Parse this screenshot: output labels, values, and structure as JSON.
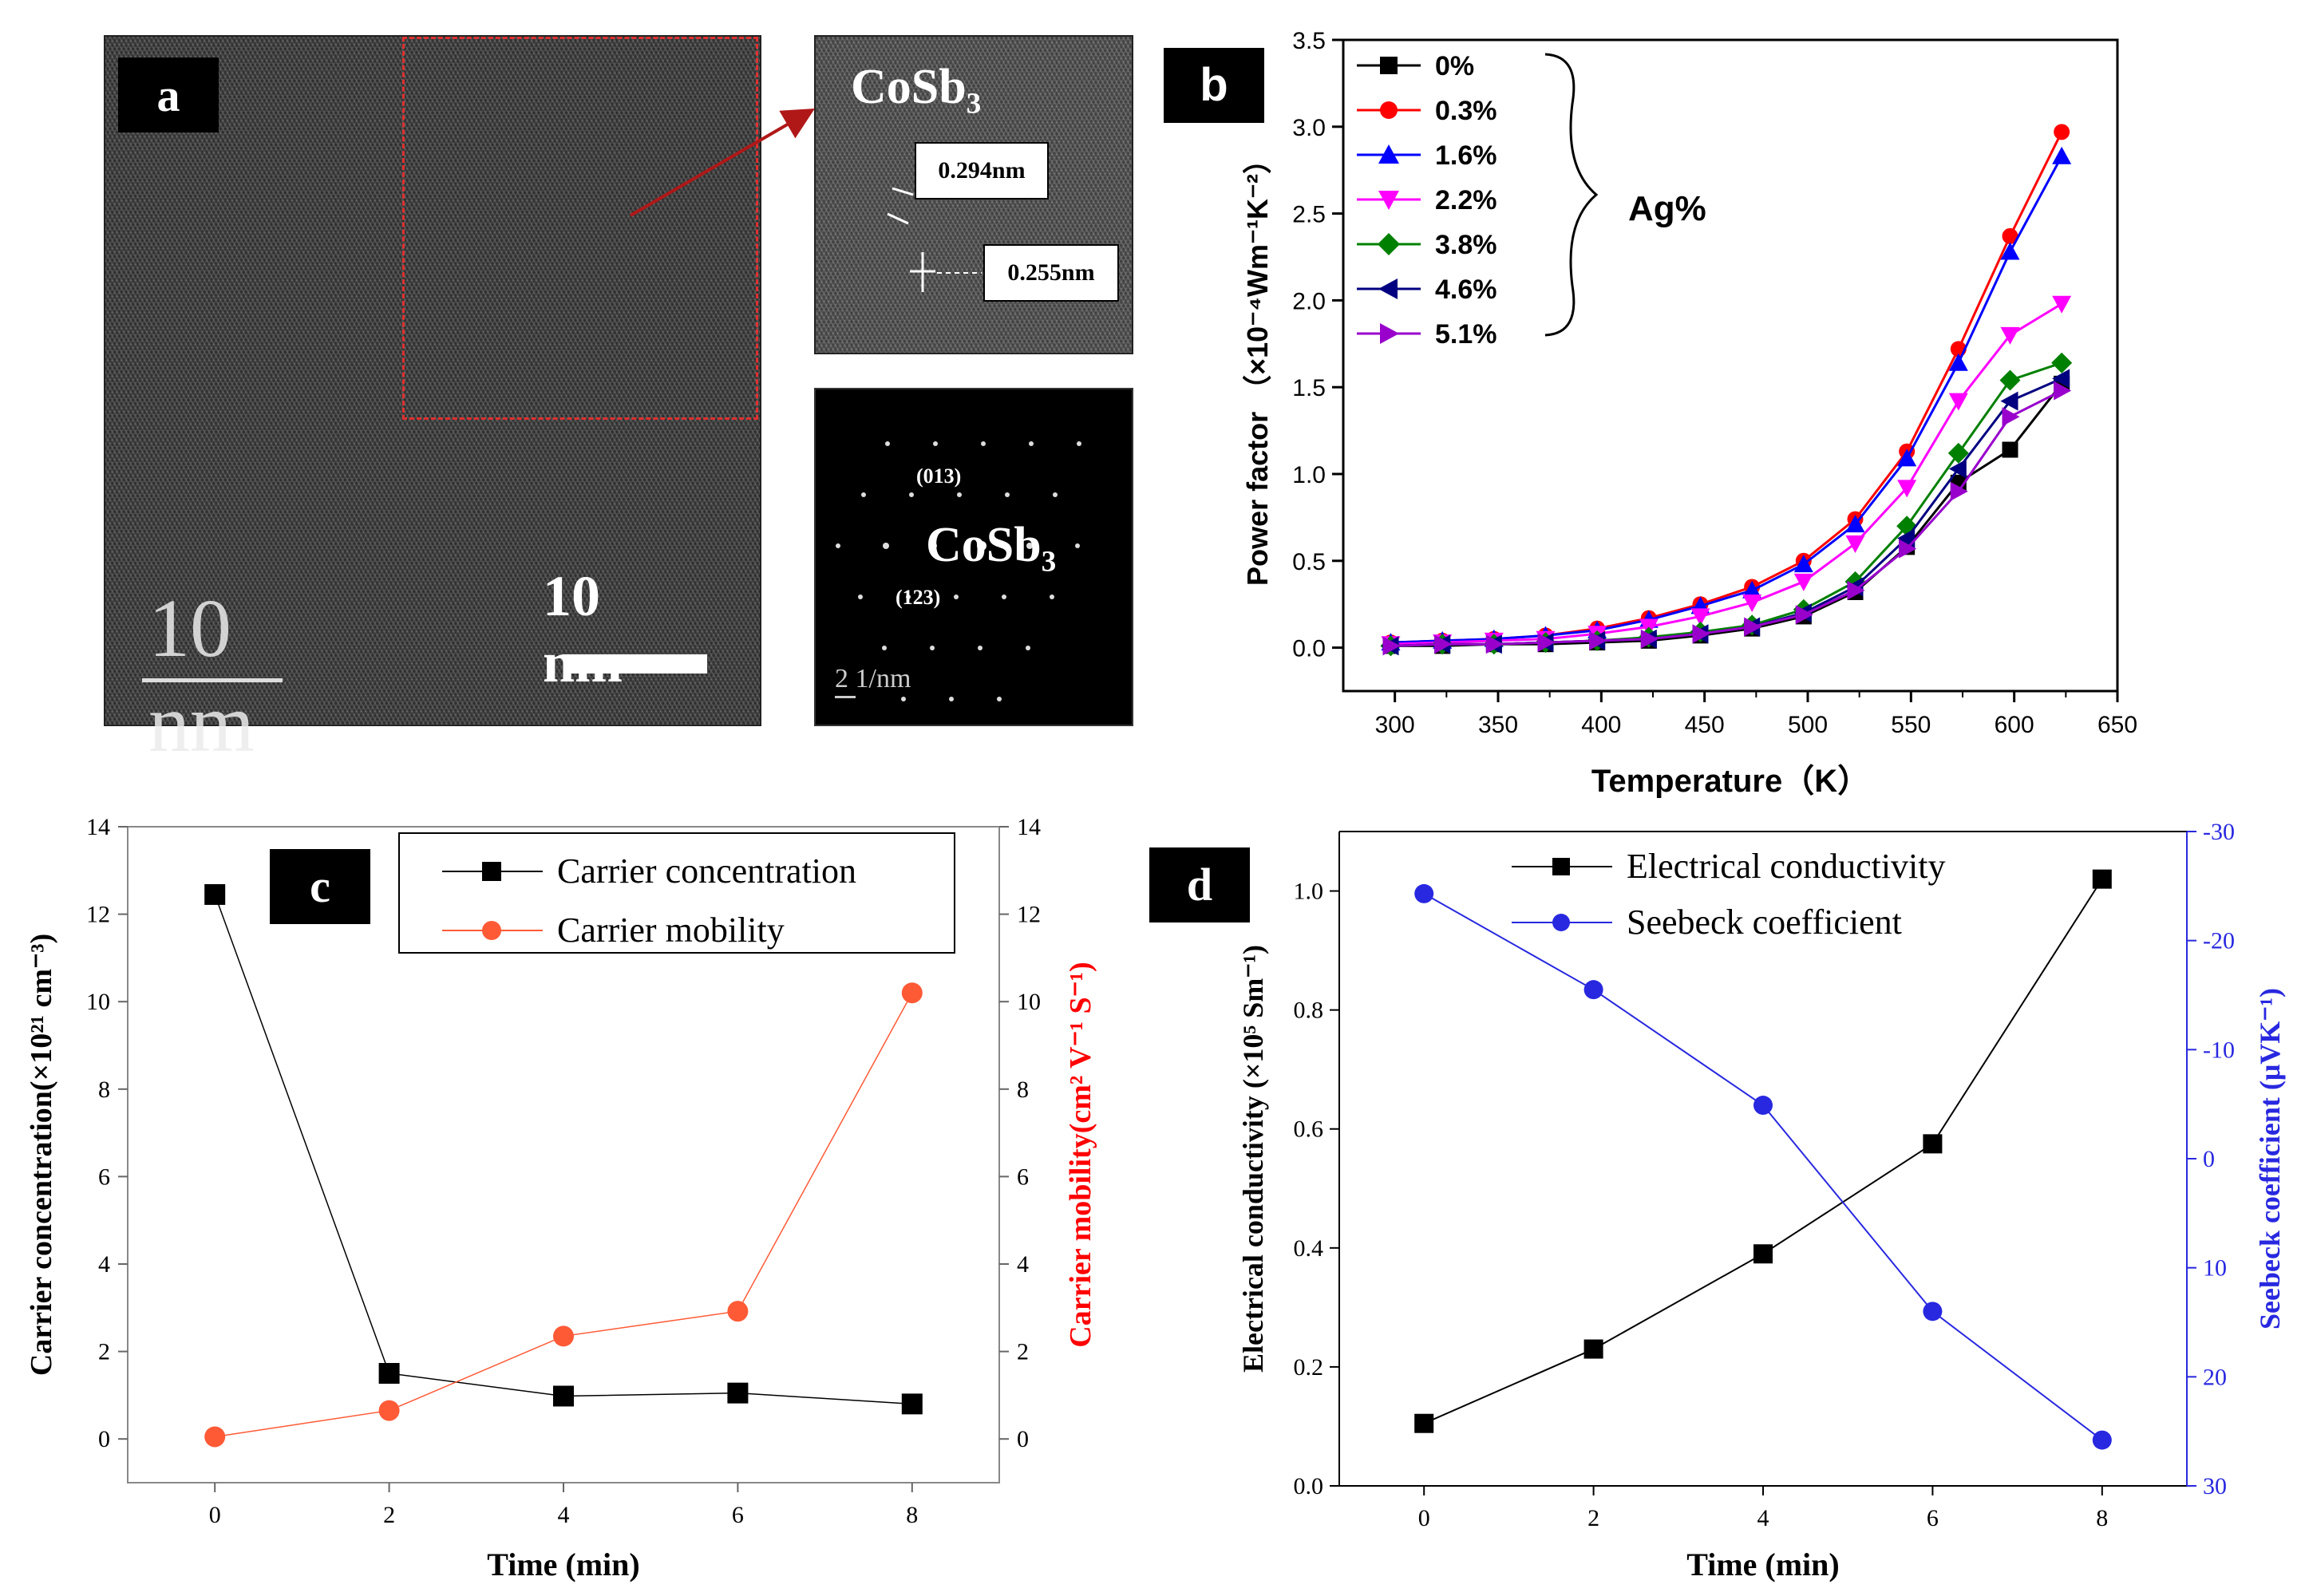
{
  "panel_a": {
    "label": "a",
    "scale_bar_large": "10 nm",
    "scale_bar_white": "10 nm",
    "inset_title": "CoSb₃",
    "d_spacing_1": "0.294nm",
    "d_spacing_2": "0.255nm",
    "saed_title": "CoSb₃",
    "saed_index_1": "(013)",
    "saed_index_2": "(123)",
    "saed_scale": "2 1/nm",
    "colors": {
      "frame": "#e03030",
      "arrow": "#b01818"
    }
  },
  "chart_data": [
    {
      "id": "b",
      "label": "b",
      "type": "line",
      "xlabel": "Temperature（K）",
      "ylabel": "Power factor （×10⁻⁴Wm⁻¹K⁻²）",
      "xlim": [
        275,
        650
      ],
      "ylim": [
        -0.25,
        3.5
      ],
      "xticks": [
        300,
        350,
        400,
        450,
        500,
        550,
        600,
        650
      ],
      "yticks": [
        0.0,
        0.5,
        1.0,
        1.5,
        2.0,
        2.5,
        3.0,
        3.5
      ],
      "legend_group_label": "Ag%",
      "x": [
        298,
        323,
        348,
        373,
        398,
        423,
        448,
        473,
        498,
        523,
        548,
        573,
        598,
        623
      ],
      "series": [
        {
          "name": "0%",
          "color": "#000000",
          "marker": "square",
          "values": [
            0.01,
            0.01,
            0.02,
            0.02,
            0.03,
            0.04,
            0.07,
            0.11,
            0.18,
            0.32,
            0.58,
            0.95,
            1.14,
            1.52
          ]
        },
        {
          "name": "0.3%",
          "color": "#ff0000",
          "marker": "circle",
          "values": [
            0.03,
            0.04,
            0.05,
            0.07,
            0.11,
            0.17,
            0.25,
            0.35,
            0.5,
            0.74,
            1.13,
            1.72,
            2.37,
            2.97
          ]
        },
        {
          "name": "1.6%",
          "color": "#0000ff",
          "marker": "triangle-up",
          "values": [
            0.03,
            0.04,
            0.05,
            0.07,
            0.1,
            0.16,
            0.24,
            0.33,
            0.48,
            0.71,
            1.09,
            1.64,
            2.28,
            2.83
          ]
        },
        {
          "name": "2.2%",
          "color": "#ff00ff",
          "marker": "triangle-down",
          "values": [
            0.02,
            0.03,
            0.04,
            0.05,
            0.08,
            0.12,
            0.18,
            0.26,
            0.38,
            0.6,
            0.92,
            1.42,
            1.8,
            1.98
          ]
        },
        {
          "name": "3.8%",
          "color": "#008000",
          "marker": "diamond",
          "values": [
            0.01,
            0.02,
            0.02,
            0.03,
            0.04,
            0.06,
            0.09,
            0.13,
            0.22,
            0.38,
            0.7,
            1.12,
            1.54,
            1.64
          ]
        },
        {
          "name": "4.6%",
          "color": "#000080",
          "marker": "triangle-left",
          "values": [
            0.01,
            0.02,
            0.02,
            0.03,
            0.04,
            0.05,
            0.08,
            0.12,
            0.2,
            0.35,
            0.63,
            1.03,
            1.42,
            1.55
          ]
        },
        {
          "name": "5.1%",
          "color": "#9900cc",
          "marker": "triangle-right",
          "values": [
            0.01,
            0.02,
            0.02,
            0.03,
            0.04,
            0.05,
            0.08,
            0.12,
            0.19,
            0.33,
            0.57,
            0.9,
            1.33,
            1.48
          ]
        }
      ]
    },
    {
      "id": "c",
      "label": "c",
      "type": "line",
      "xlabel": "Time (min)",
      "ylabel_left": "Carrier concentration(×10²¹ cm⁻³)",
      "ylabel_right": "Carrier mobility(cm² V⁻¹ S⁻¹)",
      "xlim": [
        -1,
        9
      ],
      "ylim_left": [
        -1,
        14
      ],
      "ylim_right": [
        -1,
        14
      ],
      "xticks": [
        0,
        2,
        4,
        6,
        8
      ],
      "yticks": [
        0,
        2,
        4,
        6,
        8,
        10,
        12,
        14
      ],
      "x": [
        0,
        2,
        4,
        6,
        8
      ],
      "series": [
        {
          "name": "Carrier concentration",
          "axis": "left",
          "color": "#000000",
          "marker": "square",
          "values": [
            12.45,
            1.5,
            0.98,
            1.05,
            0.8
          ]
        },
        {
          "name": "Carrier mobility",
          "axis": "right",
          "color": "#ff5a36",
          "marker": "circle",
          "values": [
            0.05,
            0.65,
            2.35,
            2.92,
            10.2
          ]
        }
      ]
    },
    {
      "id": "d",
      "label": "d",
      "type": "line",
      "xlabel": "Time (min)",
      "ylabel_left": "Electrical conductivity (×10⁵ Sm⁻¹)",
      "ylabel_right": "Seebeck coefficient (μVK⁻¹)",
      "xlim": [
        -1,
        9
      ],
      "ylim_left": [
        0.0,
        1.1
      ],
      "ylim_right": [
        30,
        -30
      ],
      "xticks": [
        0,
        2,
        4,
        6,
        8
      ],
      "yticks_left": [
        0.0,
        0.2,
        0.4,
        0.6,
        0.8,
        1.0
      ],
      "yticks_right": [
        -30,
        -20,
        -10,
        0,
        10,
        20,
        30
      ],
      "x": [
        0,
        2,
        4,
        6,
        8
      ],
      "series": [
        {
          "name": "Electrical conductivity",
          "axis": "left",
          "color": "#000000",
          "marker": "square",
          "values": [
            0.105,
            0.23,
            0.39,
            0.575,
            1.02
          ]
        },
        {
          "name": "Seebeck coefficient",
          "axis": "right",
          "color": "#2828e0",
          "marker": "circle",
          "values": [
            -24.3,
            -15.5,
            -4.9,
            14.0,
            25.8
          ]
        }
      ]
    }
  ]
}
